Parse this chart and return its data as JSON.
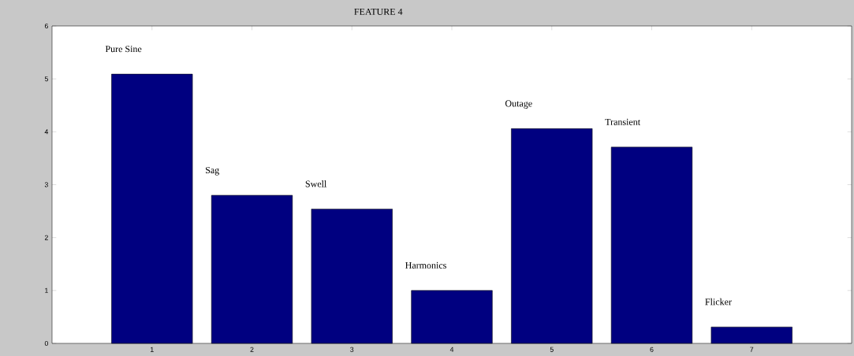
{
  "chart_data": {
    "type": "bar",
    "title": "FEATURE 4",
    "categories": [
      "1",
      "2",
      "3",
      "4",
      "5",
      "6",
      "7"
    ],
    "values": [
      5.09,
      2.8,
      2.54,
      1.0,
      4.06,
      3.71,
      0.31
    ],
    "color": "#000080",
    "ylim": [
      0,
      6
    ],
    "yticks": [
      0,
      1,
      2,
      3,
      4,
      5,
      6
    ],
    "annotations": [
      "Pure Sine",
      "Sag",
      "Swell",
      "Harmonics",
      "Outage",
      "Transient",
      "Flicker"
    ]
  }
}
